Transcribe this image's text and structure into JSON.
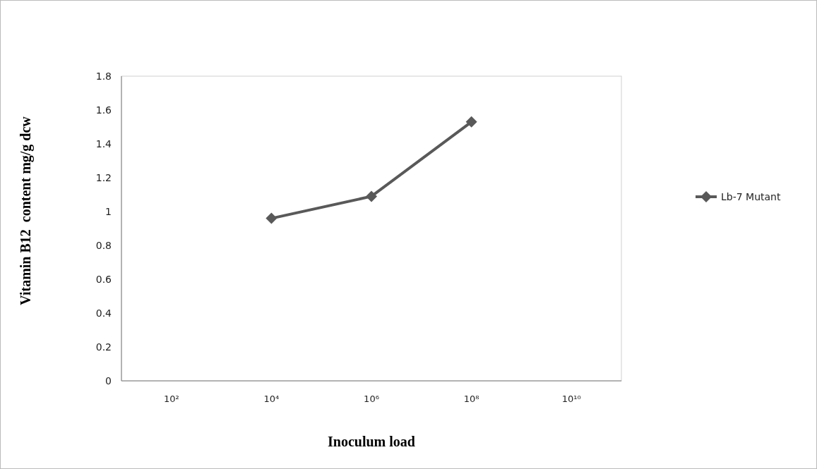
{
  "chart_data": {
    "type": "line",
    "xlabel": "Inoculum load",
    "ylabel": "Vitamin B12  content mg/g dcw",
    "categories": [
      "10²",
      "10⁴",
      "10⁶",
      "10⁸",
      "10¹⁰"
    ],
    "series": [
      {
        "name": "Lb-7 Mutant",
        "color": "#595959",
        "values": [
          null,
          0.96,
          1.09,
          1.53,
          null
        ]
      }
    ],
    "ylim": [
      0,
      1.8
    ],
    "yticks": [
      0,
      0.2,
      0.4,
      0.6,
      0.8,
      1,
      1.2,
      1.4,
      1.6,
      1.8
    ],
    "grid": false,
    "legend": "right",
    "marker": "diamond",
    "line_style": "solid"
  }
}
